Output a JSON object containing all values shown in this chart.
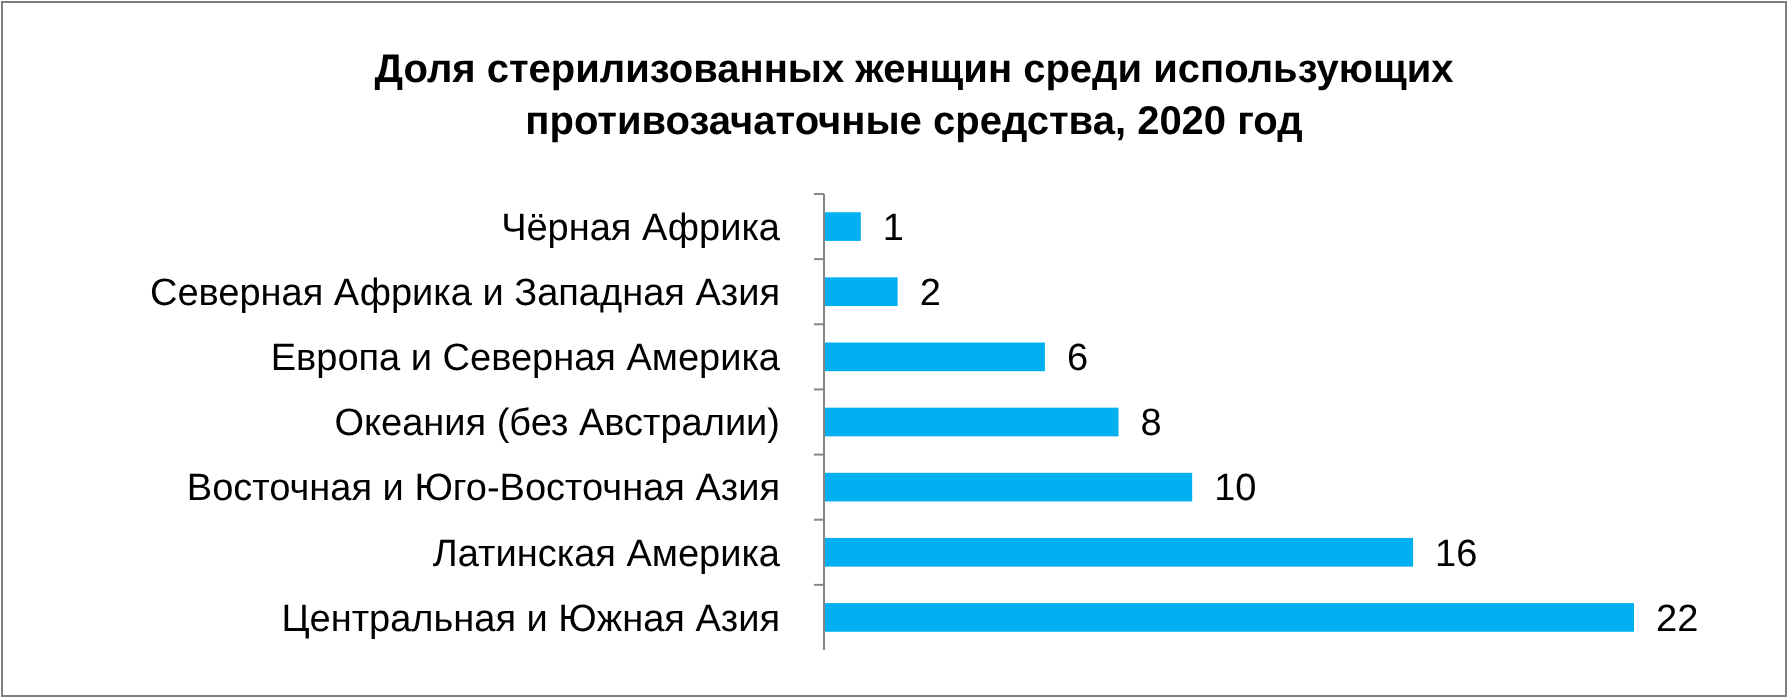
{
  "chart_data": {
    "type": "bar",
    "orientation": "horizontal",
    "title": "Доля стерилизованных женщин среди использующих противозачаточные средства, 2020 год",
    "categories": [
      "Чёрная Африка",
      "Северная Африка и Западная Азия",
      "Европа и Северная Америка",
      "Океания (без Австралии)",
      "Восточная и Юго-Восточная Азия",
      "Латинская Америка",
      "Центральная и Южная Азия"
    ],
    "values": [
      1,
      2,
      6,
      8,
      10,
      16,
      22
    ],
    "color": "#00b0f0",
    "data_labels": true
  }
}
